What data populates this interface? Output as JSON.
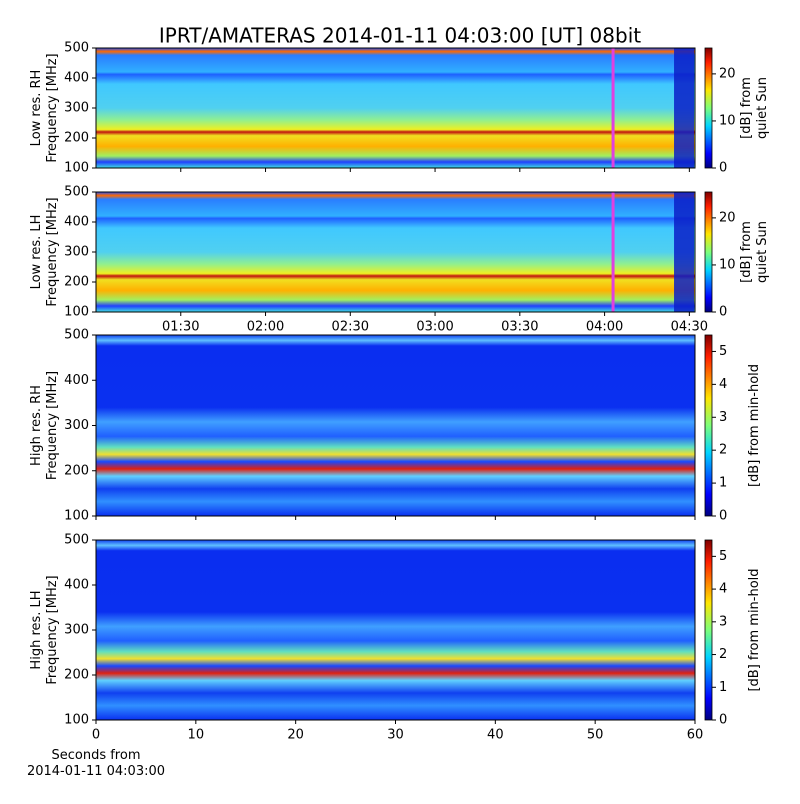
{
  "chart_data": [
    {
      "type": "heatmap",
      "title": "IPRT/AMATERAS 2014-01-11 04:03:00 [UT]   08bit",
      "ylabel": [
        "Low res. RH",
        "Frequency [MHz]"
      ],
      "ylim": [
        100,
        500
      ],
      "yticks": [
        100,
        200,
        300,
        400,
        500
      ],
      "xlim": [
        60,
        272
      ],
      "xticks": [
        {
          "value": 90,
          "label": "01:30"
        },
        {
          "value": 120,
          "label": "02:00"
        },
        {
          "value": 150,
          "label": "02:30"
        },
        {
          "value": 180,
          "label": "03:00"
        },
        {
          "value": 210,
          "label": "03:30"
        },
        {
          "value": 240,
          "label": "04:00"
        },
        {
          "value": 270,
          "label": "04:30"
        }
      ],
      "xtick_labels": false,
      "marker_x": 243,
      "marker_color": "#e040e0",
      "style": "low",
      "colorbar": {
        "label": [
          "[dB] from",
          "quiet Sun"
        ],
        "lim": [
          0,
          25.5
        ],
        "ticks": [
          0,
          10,
          20
        ]
      }
    },
    {
      "type": "heatmap",
      "ylabel": [
        "Low res. LH",
        "Frequency [MHz]"
      ],
      "ylim": [
        100,
        500
      ],
      "yticks": [
        100,
        200,
        300,
        400,
        500
      ],
      "xlim": [
        60,
        272
      ],
      "xticks": [
        {
          "value": 90,
          "label": "01:30"
        },
        {
          "value": 120,
          "label": "02:00"
        },
        {
          "value": 150,
          "label": "02:30"
        },
        {
          "value": 180,
          "label": "03:00"
        },
        {
          "value": 210,
          "label": "03:30"
        },
        {
          "value": 240,
          "label": "04:00"
        },
        {
          "value": 270,
          "label": "04:30"
        }
      ],
      "xtick_labels": true,
      "marker_x": 243,
      "marker_color": "#e040e0",
      "style": "low",
      "colorbar": {
        "label": [
          "[dB] from",
          "quiet Sun"
        ],
        "lim": [
          0,
          25.5
        ],
        "ticks": [
          0,
          10,
          20
        ]
      }
    },
    {
      "type": "heatmap",
      "ylabel": [
        "High res. RH",
        "Frequency [MHz]"
      ],
      "ylim": [
        100,
        500
      ],
      "yticks": [
        100,
        200,
        300,
        400,
        500
      ],
      "xlim": [
        0,
        60
      ],
      "xticks": [
        0,
        10,
        20,
        30,
        40,
        50,
        60
      ],
      "xtick_labels": false,
      "style": "high",
      "colorbar": {
        "label": [
          "[dB] from min-hold"
        ],
        "lim": [
          0,
          5.5
        ],
        "ticks": [
          0,
          1,
          2,
          3,
          4,
          5
        ]
      }
    },
    {
      "type": "heatmap",
      "ylabel": [
        "High res. LH",
        "Frequency [MHz]"
      ],
      "ylim": [
        100,
        500
      ],
      "yticks": [
        100,
        200,
        300,
        400,
        500
      ],
      "xlim": [
        0,
        60
      ],
      "xticks": [
        0,
        10,
        20,
        30,
        40,
        50,
        60
      ],
      "xtick_labels": true,
      "style": "high",
      "xlabel": [
        "Seconds from",
        "2014-01-11 04:03:00"
      ],
      "colorbar": {
        "label": [
          "[dB] from min-hold"
        ],
        "lim": [
          0,
          5.5
        ],
        "ticks": [
          0,
          1,
          2,
          3,
          4,
          5
        ]
      }
    }
  ]
}
